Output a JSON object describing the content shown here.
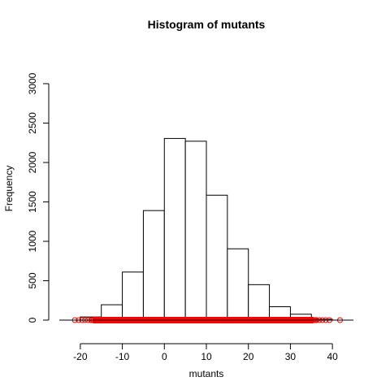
{
  "chart_data": {
    "type": "histogram",
    "title": "Histogram of mutants",
    "xlabel": "mutants",
    "ylabel": "Frequency",
    "xlim": [
      -25,
      45
    ],
    "ylim": [
      0,
      3000
    ],
    "xticks": [
      "-20",
      "-10",
      "0",
      "10",
      "20",
      "30",
      "40"
    ],
    "yticks": [
      "0",
      "500",
      "1000",
      "1500",
      "2000",
      "2500",
      "3000"
    ],
    "bin_width": 5,
    "bins": [
      {
        "start": -20,
        "end": -15,
        "count": 40
      },
      {
        "start": -15,
        "end": -10,
        "count": 195
      },
      {
        "start": -10,
        "end": -5,
        "count": 610
      },
      {
        "start": -5,
        "end": 0,
        "count": 1390
      },
      {
        "start": 0,
        "end": 5,
        "count": 2305
      },
      {
        "start": 5,
        "end": 10,
        "count": 2270
      },
      {
        "start": 10,
        "end": 15,
        "count": 1585
      },
      {
        "start": 15,
        "end": 20,
        "count": 905
      },
      {
        "start": 20,
        "end": 25,
        "count": 450
      },
      {
        "start": 25,
        "end": 30,
        "count": 170
      },
      {
        "start": 30,
        "end": 35,
        "count": 75
      },
      {
        "start": 35,
        "end": 40,
        "count": 10
      }
    ],
    "rug": {
      "color": "#ff0000",
      "range": [
        -21,
        42
      ],
      "sparse_points": [
        -21.3,
        -20.4,
        -19.6,
        -18.9,
        -18.2,
        -17.5,
        36.2,
        36.9,
        37.6,
        38.4,
        39.3,
        41.8
      ]
    },
    "colors": {
      "bars": "#ffffff",
      "bar_edge": "#000000",
      "rug": "#ff0000"
    }
  }
}
